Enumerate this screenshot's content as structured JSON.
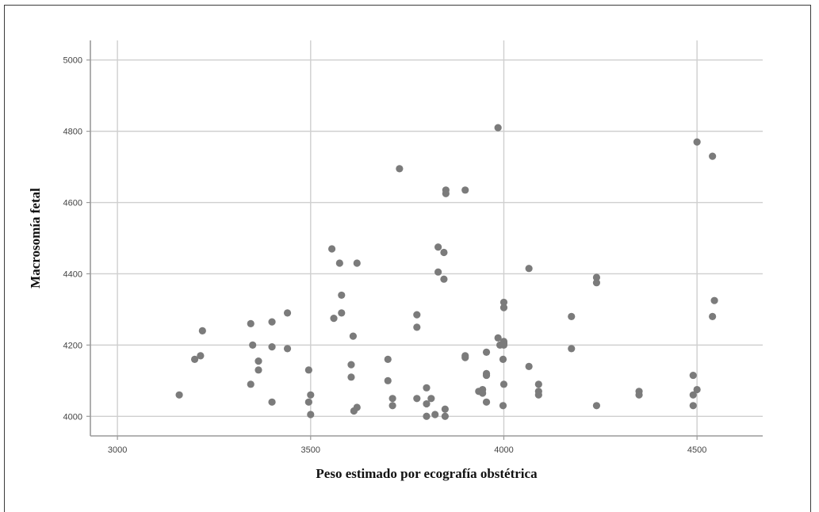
{
  "chart_data": {
    "type": "scatter",
    "xlabel": "Peso estimado por ecografía obstétrica",
    "ylabel": "Macrosomía fetal",
    "xlim": [
      2930,
      4670
    ],
    "ylim": [
      3945,
      5055
    ],
    "x_ticks": [
      3000,
      3500,
      4000,
      4500
    ],
    "y_ticks": [
      4000,
      4200,
      4400,
      4600,
      4800,
      5000
    ],
    "x_tick_labels": [
      "3000",
      "3500",
      "4000",
      "4500"
    ],
    "y_tick_labels": [
      "4000",
      "4200",
      "4400",
      "4600",
      "4800",
      "5000"
    ],
    "grid": true,
    "legend": "none",
    "marker_color": "#7b7b7b",
    "points": [
      [
        3160,
        4060
      ],
      [
        3200,
        4160
      ],
      [
        3215,
        4170
      ],
      [
        3220,
        4240
      ],
      [
        3345,
        4260
      ],
      [
        3345,
        4090
      ],
      [
        3350,
        4200
      ],
      [
        3365,
        4155
      ],
      [
        3365,
        4130
      ],
      [
        3400,
        4265
      ],
      [
        3400,
        4195
      ],
      [
        3400,
        4040
      ],
      [
        3440,
        4290
      ],
      [
        3440,
        4190
      ],
      [
        3495,
        4130
      ],
      [
        3500,
        4060
      ],
      [
        3495,
        4040
      ],
      [
        3500,
        4005
      ],
      [
        3555,
        4470
      ],
      [
        3560,
        4275
      ],
      [
        3575,
        4430
      ],
      [
        3580,
        4340
      ],
      [
        3580,
        4290
      ],
      [
        3620,
        4430
      ],
      [
        3610,
        4225
      ],
      [
        3605,
        4145
      ],
      [
        3605,
        4110
      ],
      [
        3620,
        4025
      ],
      [
        3612,
        4015
      ],
      [
        3700,
        4160
      ],
      [
        3700,
        4100
      ],
      [
        3712,
        4050
      ],
      [
        3712,
        4030
      ],
      [
        3730,
        4695
      ],
      [
        3775,
        4285
      ],
      [
        3775,
        4250
      ],
      [
        3775,
        4050
      ],
      [
        3800,
        4080
      ],
      [
        3800,
        4035
      ],
      [
        3800,
        4000
      ],
      [
        3812,
        4050
      ],
      [
        3822,
        4005
      ],
      [
        3830,
        4475
      ],
      [
        3830,
        4405
      ],
      [
        3845,
        4460
      ],
      [
        3845,
        4385
      ],
      [
        3848,
        4020
      ],
      [
        3848,
        4000
      ],
      [
        3850,
        4635
      ],
      [
        3850,
        4625
      ],
      [
        3900,
        4635
      ],
      [
        3900,
        4170
      ],
      [
        3900,
        4165
      ],
      [
        3935,
        4070
      ],
      [
        3945,
        4075
      ],
      [
        3945,
        4065
      ],
      [
        3955,
        4180
      ],
      [
        3955,
        4120
      ],
      [
        3955,
        4115
      ],
      [
        3955,
        4040
      ],
      [
        3985,
        4810
      ],
      [
        3985,
        4220
      ],
      [
        3990,
        4200
      ],
      [
        3998,
        4160
      ],
      [
        3998,
        4030
      ],
      [
        4000,
        4320
      ],
      [
        4000,
        4305
      ],
      [
        4000,
        4210
      ],
      [
        4000,
        4205
      ],
      [
        4000,
        4200
      ],
      [
        4000,
        4090
      ],
      [
        4065,
        4415
      ],
      [
        4065,
        4140
      ],
      [
        4090,
        4090
      ],
      [
        4090,
        4070
      ],
      [
        4090,
        4060
      ],
      [
        4175,
        4280
      ],
      [
        4175,
        4190
      ],
      [
        4240,
        4390
      ],
      [
        4240,
        4375
      ],
      [
        4240,
        4030
      ],
      [
        4350,
        4070
      ],
      [
        4350,
        4060
      ],
      [
        4490,
        4115
      ],
      [
        4490,
        4060
      ],
      [
        4490,
        4030
      ],
      [
        4500,
        4770
      ],
      [
        4500,
        4075
      ],
      [
        4540,
        4730
      ],
      [
        4545,
        4325
      ],
      [
        4540,
        4280
      ]
    ]
  }
}
